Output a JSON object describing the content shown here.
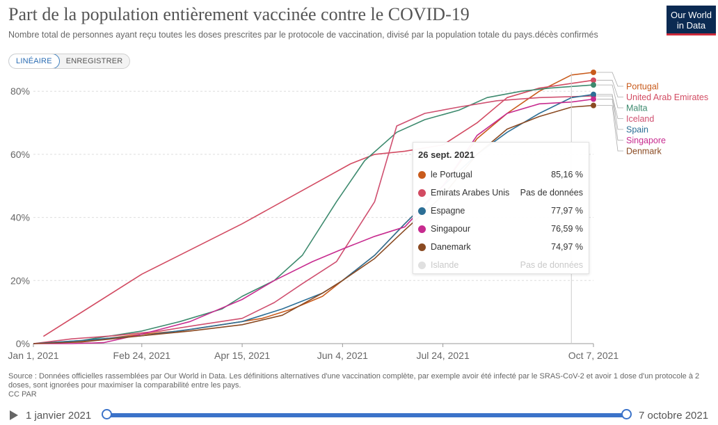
{
  "header": {
    "title": "Part de la population entièrement vaccinée contre le COVID-19",
    "subtitle": "Nombre total de personnes ayant reçu toutes les doses prescrites par le protocole de vaccination, divisé par la population totale du pays.décès confirmés",
    "logo_line1": "Our World",
    "logo_line2": "in Data"
  },
  "toggle": {
    "linear_label": "LINÉAIRE",
    "log_label": "ENREGISTRER",
    "active": "linear"
  },
  "chart_data": {
    "type": "line",
    "title": "Part de la population entièrement vaccinée contre le COVID-19",
    "ylim": [
      0,
      86
    ],
    "yticks": [
      0,
      20,
      40,
      60,
      80
    ],
    "ytick_labels": [
      "0%",
      "20%",
      "40%",
      "60%",
      "80%"
    ],
    "xlim": [
      "2021-01-01",
      "2021-10-07"
    ],
    "xticks": [
      "2021-01-01",
      "2021-02-24",
      "2021-04-15",
      "2021-06-04",
      "2021-07-24",
      "2021-10-07"
    ],
    "xtick_labels": [
      "Jan 1, 2021",
      "Feb 24, 2021",
      "Apr 15, 2021",
      "Jun 4, 2021",
      "Jul 24, 2021",
      "Oct 7, 2021"
    ],
    "grid": "horizontal",
    "series": [
      {
        "name": "Portugal",
        "color": "#c95b1c",
        "x": [
          "2021-01-01",
          "2021-01-20",
          "2021-02-05",
          "2021-02-24",
          "2021-03-15",
          "2021-04-05",
          "2021-04-25",
          "2021-05-10",
          "2021-05-25",
          "2021-06-04",
          "2021-06-20",
          "2021-07-05",
          "2021-07-24",
          "2021-08-10",
          "2021-08-25",
          "2021-09-10",
          "2021-09-26",
          "2021-10-07"
        ],
        "y": [
          0,
          0.5,
          1.5,
          3,
          4,
          6,
          8,
          11,
          15,
          20,
          28,
          38,
          50,
          65,
          73,
          80,
          85.16,
          86
        ]
      },
      {
        "name": "United Arab Emirates",
        "color": "#d24b62",
        "x": [
          "2021-01-06",
          "2021-02-24",
          "2021-04-15",
          "2021-06-08",
          "2021-06-20",
          "2021-07-05",
          "2021-07-24",
          "2021-08-10",
          "2021-08-25",
          "2021-09-10",
          "2021-10-07"
        ],
        "y": [
          2.3,
          22,
          38,
          57,
          60,
          61,
          63,
          70,
          78,
          81,
          83.5
        ]
      },
      {
        "name": "Malta",
        "color": "#3d8a6e",
        "x": [
          "2021-01-01",
          "2021-01-25",
          "2021-02-24",
          "2021-03-15",
          "2021-04-05",
          "2021-04-15",
          "2021-05-01",
          "2021-05-15",
          "2021-06-01",
          "2021-06-15",
          "2021-07-01",
          "2021-07-15",
          "2021-08-01",
          "2021-08-15",
          "2021-09-01",
          "2021-09-15",
          "2021-10-07"
        ],
        "y": [
          0,
          1,
          4,
          7,
          11,
          15,
          20,
          28,
          45,
          58,
          67,
          71,
          74,
          78,
          80,
          81,
          82
        ]
      },
      {
        "name": "Iceland",
        "color": "#cf4f6f",
        "x": [
          "2021-01-01",
          "2021-01-20",
          "2021-02-10",
          "2021-03-05",
          "2021-03-25",
          "2021-04-15",
          "2021-05-01",
          "2021-05-15",
          "2021-06-01",
          "2021-06-10",
          "2021-06-20",
          "2021-07-01",
          "2021-07-15",
          "2021-08-01",
          "2021-08-20",
          "2021-09-10",
          "2021-10-07"
        ],
        "y": [
          0,
          1.5,
          2.5,
          4,
          6,
          8,
          13,
          19,
          26,
          35,
          45,
          69,
          73,
          75,
          77,
          78,
          78.5
        ]
      },
      {
        "name": "Spain",
        "color": "#2c6f96",
        "x": [
          "2021-01-01",
          "2021-01-25",
          "2021-02-24",
          "2021-03-20",
          "2021-04-15",
          "2021-05-05",
          "2021-05-25",
          "2021-06-04",
          "2021-06-20",
          "2021-07-05",
          "2021-07-24",
          "2021-08-10",
          "2021-08-25",
          "2021-09-10",
          "2021-09-26",
          "2021-10-07"
        ],
        "y": [
          0,
          1,
          2.5,
          4.5,
          7,
          11,
          16,
          20,
          28,
          38,
          50,
          60,
          67,
          73,
          77.97,
          79
        ]
      },
      {
        "name": "Singapore",
        "color": "#c72b8f",
        "x": [
          "2021-01-01",
          "2021-01-20",
          "2021-02-05",
          "2021-02-24",
          "2021-03-20",
          "2021-04-15",
          "2021-05-01",
          "2021-05-20",
          "2021-06-04",
          "2021-06-20",
          "2021-07-05",
          "2021-07-24",
          "2021-08-10",
          "2021-08-25",
          "2021-09-10",
          "2021-09-26",
          "2021-10-07"
        ],
        "y": [
          0,
          0,
          0.3,
          3,
          7,
          14,
          20,
          26,
          30,
          34,
          37,
          50,
          66,
          73,
          76,
          76.59,
          77.5
        ]
      },
      {
        "name": "Denmark",
        "color": "#8a4a22",
        "x": [
          "2021-01-01",
          "2021-01-25",
          "2021-02-24",
          "2021-03-20",
          "2021-04-15",
          "2021-05-05",
          "2021-05-25",
          "2021-06-04",
          "2021-06-20",
          "2021-07-05",
          "2021-07-24",
          "2021-08-10",
          "2021-08-25",
          "2021-09-10",
          "2021-09-26",
          "2021-10-07"
        ],
        "y": [
          0,
          0.5,
          2.5,
          4,
          6,
          9,
          16,
          20,
          27,
          36,
          47,
          60,
          68,
          72,
          74.97,
          75.5
        ]
      }
    ],
    "tooltip": {
      "date": "26 sept. 2021",
      "rows": [
        {
          "name": "le Portugal",
          "value": "85,16 %",
          "color": "#c95b1c"
        },
        {
          "name": "Emirats Arabes Unis",
          "value": "Pas de données",
          "color": "#d24b62"
        },
        {
          "name": "Espagne",
          "value": "77,97 %",
          "color": "#2c6f96"
        },
        {
          "name": "Singapour",
          "value": "76,59 %",
          "color": "#c72b8f"
        },
        {
          "name": "Danemark",
          "value": "74,97 %",
          "color": "#8a4a22"
        },
        {
          "name": "Islande",
          "value": "Pas de données",
          "color": "#e0e0e0",
          "faded": true
        }
      ]
    }
  },
  "footer": {
    "source": "Source : Données officielles rassemblées par Our World in Data. Les définitions alternatives d'une vaccination complète, par exemple avoir été infecté par le SRAS-CoV-2 et avoir 1 dose d'un protocole à 2 doses, sont ignorées pour maximiser la comparabilité entre les pays.",
    "license": "CC PAR"
  },
  "timeline": {
    "start_label": "1 janvier 2021",
    "end_label": "7 octobre 2021",
    "accent": "#3b73c9"
  }
}
